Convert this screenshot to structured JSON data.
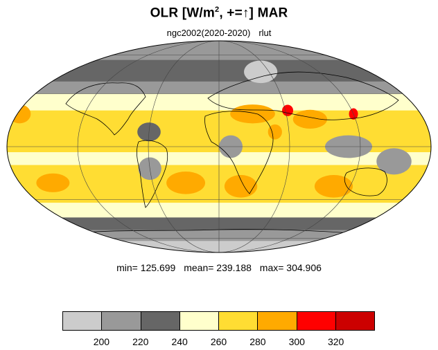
{
  "header": {
    "title_pre": "OLR [W/m",
    "title_sup": "2",
    "title_post": ", +=↑] MAR",
    "subtitle_case": "ngc2002(2020-2020)",
    "subtitle_var": "rlut"
  },
  "stats": {
    "min": "min= 125.699",
    "mean": "mean= 239.188",
    "max": "max= 304.906"
  },
  "colorbar": {
    "colors": [
      "#cccccc",
      "#999999",
      "#666666",
      "#ffffcc",
      "#ffdd33",
      "#ffaa00",
      "#ff0000",
      "#cc0000"
    ],
    "ticks": [
      "200",
      "220",
      "240",
      "260",
      "280",
      "300",
      "320"
    ]
  },
  "map": {
    "projection": "Mollweide",
    "bands": [
      {
        "lat": [
          90,
          55
        ],
        "color": "#999999"
      },
      {
        "lat": [
          55,
          38
        ],
        "color": "#666666"
      },
      {
        "lat": [
          38,
          30
        ],
        "color": "#999999"
      },
      {
        "lat": [
          30,
          20
        ],
        "color": "#ffffcc"
      },
      {
        "lat": [
          20,
          -3
        ],
        "color": "#ffdd33"
      },
      {
        "lat": [
          -3,
          -10
        ],
        "color": "#ffffcc"
      },
      {
        "lat": [
          -10,
          -32
        ],
        "color": "#ffdd33"
      },
      {
        "lat": [
          -32,
          -42
        ],
        "color": "#ffffcc"
      },
      {
        "lat": [
          -42,
          -52
        ],
        "color": "#666666"
      },
      {
        "lat": [
          -52,
          -63
        ],
        "color": "#999999"
      },
      {
        "lat": [
          -63,
          -90
        ],
        "color": "#cccccc"
      }
    ],
    "patches": [
      {
        "lon": -178,
        "lat": 18,
        "w": 20,
        "h": 10,
        "color": "#ffaa00"
      },
      {
        "lon": -150,
        "lat": -20,
        "w": 30,
        "h": 10,
        "color": "#ffaa00"
      },
      {
        "lon": 30,
        "lat": 18,
        "w": 40,
        "h": 10,
        "color": "#ffaa00"
      },
      {
        "lon": 80,
        "lat": 15,
        "w": 30,
        "h": 10,
        "color": "#ffaa00"
      },
      {
        "lon": 20,
        "lat": -22,
        "w": 30,
        "h": 12,
        "color": "#ffaa00"
      },
      {
        "lon": -30,
        "lat": -20,
        "w": 35,
        "h": 12,
        "color": "#ffaa00"
      },
      {
        "lon": 105,
        "lat": -22,
        "w": 35,
        "h": 12,
        "color": "#ffaa00"
      },
      {
        "lon": 62,
        "lat": 20,
        "w": 10,
        "h": 6,
        "color": "#ff0000"
      },
      {
        "lon": 120,
        "lat": 18,
        "w": 8,
        "h": 6,
        "color": "#ff0000"
      },
      {
        "lon": 48,
        "lat": 8,
        "w": 12,
        "h": 8,
        "color": "#ffaa00"
      },
      {
        "lon": -60,
        "lat": 8,
        "w": 20,
        "h": 10,
        "color": "#666666"
      },
      {
        "lon": 10,
        "lat": 0,
        "w": 20,
        "h": 12,
        "color": "#999999"
      },
      {
        "lon": 110,
        "lat": 0,
        "w": 40,
        "h": 12,
        "color": "#999999"
      },
      {
        "lon": -60,
        "lat": -12,
        "w": 20,
        "h": 12,
        "color": "#999999"
      },
      {
        "lon": 150,
        "lat": -8,
        "w": 30,
        "h": 14,
        "color": "#999999"
      },
      {
        "lon": 50,
        "lat": 45,
        "w": 40,
        "h": 12,
        "color": "#cccccc"
      }
    ]
  }
}
